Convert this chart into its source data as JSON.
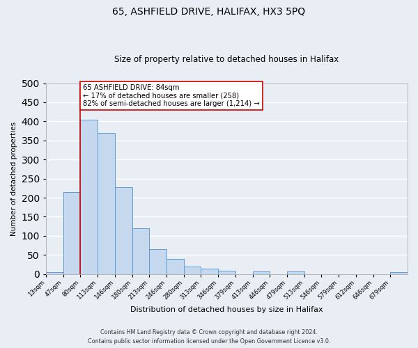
{
  "title": "65, ASHFIELD DRIVE, HALIFAX, HX3 5PQ",
  "subtitle": "Size of property relative to detached houses in Halifax",
  "xlabel": "Distribution of detached houses by size in Halifax",
  "ylabel": "Number of detached properties",
  "bin_labels": [
    "13sqm",
    "47sqm",
    "80sqm",
    "113sqm",
    "146sqm",
    "180sqm",
    "213sqm",
    "246sqm",
    "280sqm",
    "313sqm",
    "346sqm",
    "379sqm",
    "413sqm",
    "446sqm",
    "479sqm",
    "513sqm",
    "546sqm",
    "579sqm",
    "612sqm",
    "646sqm",
    "679sqm"
  ],
  "bar_values": [
    5,
    215,
    405,
    370,
    228,
    120,
    65,
    40,
    20,
    14,
    8,
    0,
    7,
    0,
    6,
    0,
    0,
    0,
    0,
    0,
    5
  ],
  "bar_color": "#c5d8ed",
  "bar_edge_color": "#5b9bd5",
  "vline_x_index": 2,
  "vline_color": "#cc0000",
  "annotation_title": "65 ASHFIELD DRIVE: 84sqm",
  "annotation_line1": "← 17% of detached houses are smaller (258)",
  "annotation_line2": "82% of semi-detached houses are larger (1,214) →",
  "annotation_box_color": "#ffffff",
  "annotation_box_edge": "#cc0000",
  "background_color": "#e8eef4",
  "plot_bg_color": "#e8eef4",
  "grid_color": "#ffffff",
  "ylim": [
    0,
    500
  ],
  "footer1": "Contains HM Land Registry data © Crown copyright and database right 2024.",
  "footer2": "Contains public sector information licensed under the Open Government Licence v3.0."
}
